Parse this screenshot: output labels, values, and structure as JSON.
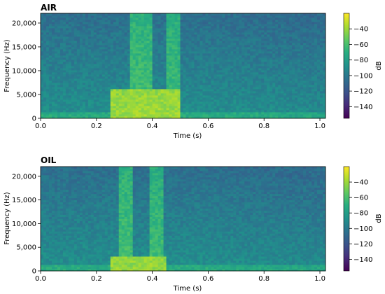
{
  "chart_data": [
    {
      "type": "heatmap",
      "title": "AIR",
      "xlabel": "Time (s)",
      "ylabel": "Frequency (Hz)",
      "xlim": [
        0.0,
        1.02
      ],
      "ylim": [
        0,
        22050
      ],
      "x_ticks": [
        "0.0",
        "0.2",
        "0.4",
        "0.6",
        "0.8",
        "1.0"
      ],
      "y_ticks": [
        "0",
        "5,000",
        "10,000",
        "15,000",
        "20,000"
      ],
      "colorbar": {
        "label": "dB",
        "range": [
          -155,
          -20
        ],
        "ticks": [
          "-40",
          "-60",
          "-80",
          "-100",
          "-120",
          "-140"
        ]
      },
      "colormap": "viridis",
      "features": [
        {
          "time_s": [
            0.25,
            0.5
          ],
          "freq_hz": [
            0,
            6000
          ],
          "level_db": -40
        },
        {
          "time_s": [
            0.32,
            0.4
          ],
          "freq_hz": [
            0,
            22050
          ],
          "level_db": -60
        },
        {
          "time_s": [
            0.45,
            0.5
          ],
          "freq_hz": [
            0,
            22050
          ],
          "level_db": -62
        },
        {
          "time_s": [
            0.85,
            1.02
          ],
          "freq_hz": [
            0,
            22050
          ],
          "level_db": -100
        }
      ]
    },
    {
      "type": "heatmap",
      "title": "OIL",
      "xlabel": "Time (s)",
      "ylabel": "Frequency (Hz)",
      "xlim": [
        0.0,
        1.02
      ],
      "ylim": [
        0,
        22050
      ],
      "x_ticks": [
        "0.0",
        "0.2",
        "0.4",
        "0.6",
        "0.8",
        "1.0"
      ],
      "y_ticks": [
        "0",
        "5,000",
        "10,000",
        "15,000",
        "20,000"
      ],
      "colorbar": {
        "label": "dB",
        "range": [
          -155,
          -20
        ],
        "ticks": [
          "-40",
          "-60",
          "-80",
          "-100",
          "-120",
          "-140"
        ]
      },
      "colormap": "viridis",
      "features": [
        {
          "time_s": [
            0.28,
            0.33
          ],
          "freq_hz": [
            0,
            22050
          ],
          "level_db": -60
        },
        {
          "time_s": [
            0.39,
            0.44
          ],
          "freq_hz": [
            0,
            22050
          ],
          "level_db": -62
        },
        {
          "time_s": [
            0.25,
            0.45
          ],
          "freq_hz": [
            0,
            3000
          ],
          "level_db": -42
        }
      ]
    }
  ]
}
